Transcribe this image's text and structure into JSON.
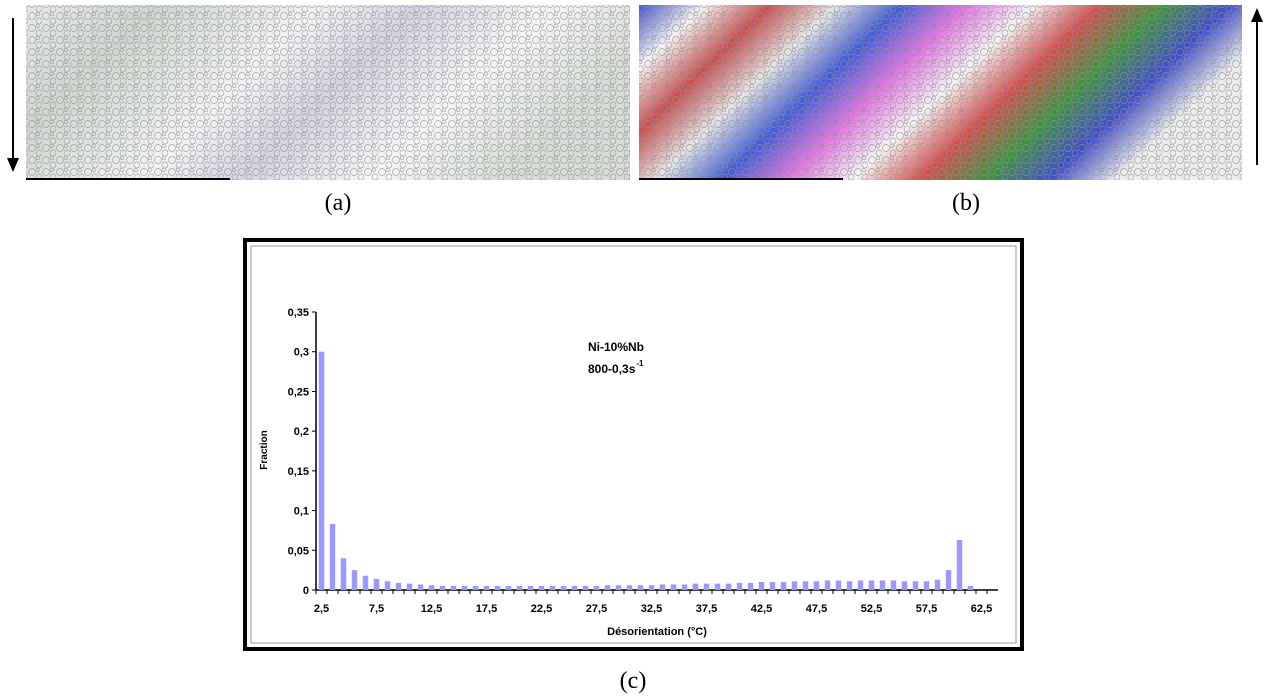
{
  "captions": {
    "a": "(a)",
    "b": "(b)",
    "c": "(c)"
  },
  "chart_data": {
    "type": "bar",
    "annotations": [
      "Ni-10%Nb",
      "800-0,3s"
    ],
    "annotation_superscript": "-1",
    "xlabel": "Désorientation (°C)",
    "ylabel": "Fraction",
    "color": "#9999ff",
    "categories": [
      "2,5",
      null,
      null,
      null,
      null,
      "7,5",
      null,
      null,
      null,
      null,
      "12,5",
      null,
      null,
      null,
      null,
      "17,5",
      null,
      null,
      null,
      null,
      "22,5",
      null,
      null,
      null,
      null,
      "27,5",
      null,
      null,
      null,
      null,
      "32,5",
      null,
      null,
      null,
      null,
      "37,5",
      null,
      null,
      null,
      null,
      "42,5",
      null,
      null,
      null,
      null,
      "47,5",
      null,
      null,
      null,
      null,
      "52,5",
      null,
      null,
      null,
      null,
      "57,5",
      null,
      null,
      null,
      null,
      "62,5",
      null
    ],
    "values": [
      0.3,
      0.083,
      0.04,
      0.025,
      0.018,
      0.014,
      0.011,
      0.009,
      0.008,
      0.007,
      0.006,
      0.005,
      0.005,
      0.005,
      0.005,
      0.005,
      0.005,
      0.005,
      0.005,
      0.005,
      0.005,
      0.005,
      0.005,
      0.005,
      0.005,
      0.005,
      0.006,
      0.006,
      0.006,
      0.006,
      0.006,
      0.007,
      0.007,
      0.007,
      0.008,
      0.008,
      0.008,
      0.008,
      0.009,
      0.009,
      0.01,
      0.01,
      0.01,
      0.011,
      0.011,
      0.011,
      0.012,
      0.012,
      0.011,
      0.012,
      0.012,
      0.012,
      0.012,
      0.011,
      0.011,
      0.011,
      0.013,
      0.025,
      0.063,
      0.005,
      null,
      null
    ],
    "ylim": [
      0,
      0.35
    ],
    "yticks": [
      0,
      {
        "value": 0.05,
        "label": "0,05"
      },
      {
        "value": 0.1,
        "label": "0,1"
      },
      {
        "value": 0.15,
        "label": "0,15"
      },
      {
        "value": 0.2,
        "label": "0,2"
      },
      {
        "value": 0.25,
        "label": "0,25"
      },
      {
        "value": 0.3,
        "label": "0,3"
      },
      {
        "value": 0.35,
        "label": "0,35"
      }
    ]
  }
}
